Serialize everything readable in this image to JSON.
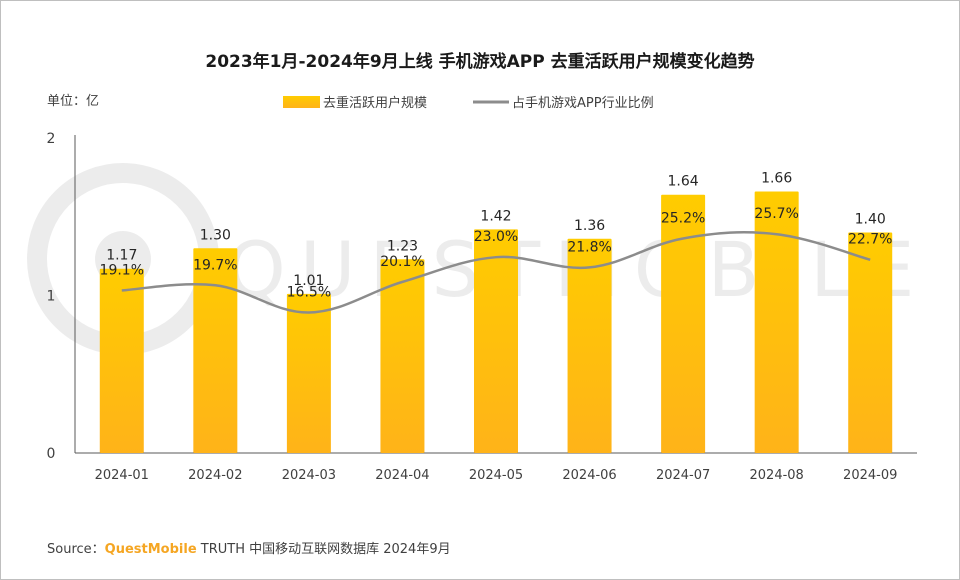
{
  "chart_data": {
    "type": "bar",
    "title": "2023年1月-2024年9月上线 手机游戏APP 去重活跃用户规模变化趋势",
    "unit_label": "单位：亿",
    "categories": [
      "2024-01",
      "2024-02",
      "2024-03",
      "2024-04",
      "2024-05",
      "2024-06",
      "2024-07",
      "2024-08",
      "2024-09"
    ],
    "series": [
      {
        "name": "去重活跃用户规模",
        "type": "bar",
        "values": [
          1.17,
          1.3,
          1.01,
          1.23,
          1.42,
          1.36,
          1.64,
          1.66,
          1.4
        ],
        "labels": [
          "1.17",
          "1.30",
          "1.01",
          "1.23",
          "1.42",
          "1.36",
          "1.64",
          "1.66",
          "1.40"
        ]
      },
      {
        "name": "占手机游戏APP行业比例",
        "type": "line",
        "values": [
          19.1,
          19.7,
          16.5,
          20.1,
          23.0,
          21.8,
          25.2,
          25.7,
          22.7
        ],
        "labels": [
          "19.1%",
          "19.7%",
          "16.5%",
          "20.1%",
          "23.0%",
          "21.8%",
          "25.2%",
          "25.7%",
          "22.7%"
        ]
      }
    ],
    "y_ticks": [
      "0",
      "1",
      "2"
    ],
    "ylim": [
      0,
      2
    ],
    "legend_position": "top-center",
    "grid": false,
    "colors": {
      "bar_top": "#FFCC00",
      "bar_bottom": "#FFB319",
      "line": "#8C8C8C",
      "text": "#262626",
      "axis": "#595959"
    }
  },
  "source": {
    "prefix": "Source：",
    "brand": "QuestMobile",
    "rest": " TRUTH 中国移动互联网数据库 2024年9月",
    "brand_color": "#F5A623"
  },
  "watermark": "QUESTMOBILE"
}
